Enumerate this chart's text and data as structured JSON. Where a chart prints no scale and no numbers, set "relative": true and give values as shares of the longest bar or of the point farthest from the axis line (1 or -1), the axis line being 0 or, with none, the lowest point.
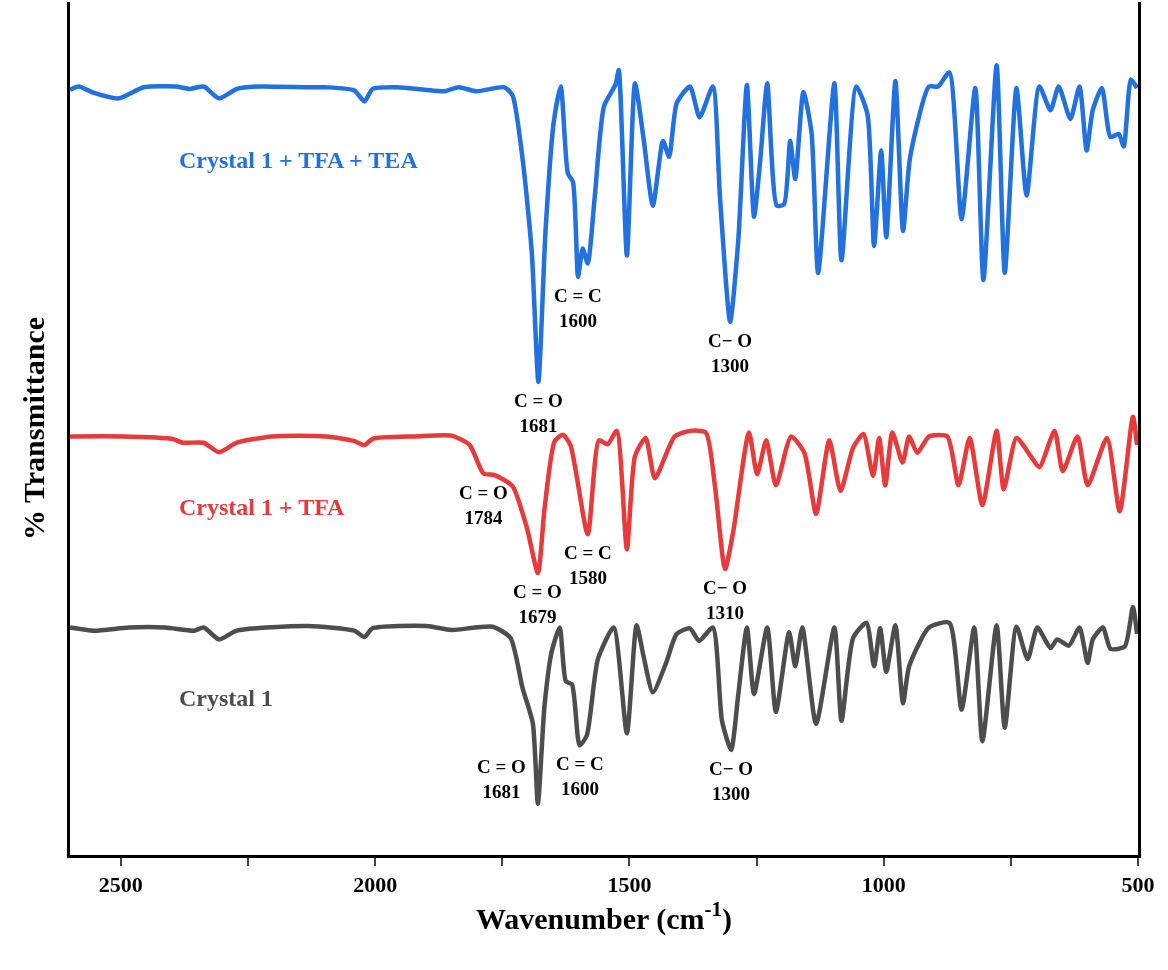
{
  "chart_data": {
    "type": "line",
    "relative": true,
    "xlabel": "Wavenumber (cm$^{-1}$)",
    "ylabel": "% Transmittance",
    "xlim": [
      2600,
      500
    ],
    "xticks": [
      2500,
      {
        "value": 2250,
        "label": null
      },
      2000,
      {
        "value": 1750,
        "label": null
      },
      1500,
      {
        "value": 1250,
        "label": null
      },
      1000,
      {
        "value": 750,
        "label": null
      },
      500
    ],
    "legend": false,
    "marker": "none",
    "line_style": "solid",
    "series": [
      {
        "name": "Crystal 1 + TFA + TEA",
        "color": "#2271e0",
        "x": [
          2600,
          2583,
          2553,
          2504,
          2455,
          2392,
          2364,
          2337,
          2307,
          2272,
          2230,
          2132,
          2096,
          2041,
          2021,
          2005,
          1956,
          1864,
          1836,
          1801,
          1746,
          1730,
          1710,
          1692,
          1679,
          1665,
          1649,
          1635,
          1621,
          1611,
          1601,
          1592,
          1582,
          1568,
          1550,
          1527,
          1521,
          1505,
          1489,
          1472,
          1454,
          1434,
          1422,
          1407,
          1381,
          1362,
          1336,
          1322,
          1302,
          1286,
          1269,
          1255,
          1243,
          1229,
          1210,
          1196,
          1184,
          1174,
          1158,
          1142,
          1129,
          1097,
          1083,
          1054,
          1032,
          1019,
          1005,
          995,
          977,
          962,
          948,
          911,
          893,
          871,
          847,
          820,
          804,
          778,
          762,
          739,
          719,
          694,
          672,
          656,
          633,
          615,
          601,
          589,
          571,
          554,
          538,
          528,
          514,
          502
        ],
        "values": [
          0.969,
          0.973,
          0.965,
          0.958,
          0.972,
          0.973,
          0.97,
          0.973,
          0.958,
          0.97,
          0.973,
          0.972,
          0.972,
          0.968,
          0.954,
          0.97,
          0.972,
          0.967,
          0.972,
          0.967,
          0.972,
          0.962,
          0.881,
          0.763,
          0.599,
          0.79,
          0.927,
          0.973,
          0.863,
          0.852,
          0.732,
          0.768,
          0.749,
          0.835,
          0.948,
          0.976,
          0.994,
          0.759,
          0.977,
          0.906,
          0.822,
          0.904,
          0.884,
          0.952,
          0.973,
          0.934,
          0.973,
          0.833,
          0.675,
          0.778,
          0.975,
          0.808,
          0.878,
          0.977,
          0.822,
          0.824,
          0.904,
          0.856,
          0.966,
          0.915,
          0.737,
          0.977,
          0.753,
          0.973,
          0.938,
          0.771,
          0.892,
          0.782,
          0.98,
          0.79,
          0.884,
          0.973,
          0.973,
          0.991,
          0.805,
          0.971,
          0.728,
          1.0,
          0.737,
          0.971,
          0.835,
          0.973,
          0.943,
          0.973,
          0.932,
          0.973,
          0.892,
          0.943,
          0.971,
          0.909,
          0.913,
          0.897,
          0.982,
          0.971
        ]
      },
      {
        "name": "Crystal 1 + TFA",
        "color": "#e8393b",
        "x": [
          2600,
          2498,
          2400,
          2378,
          2337,
          2307,
          2272,
          2203,
          2096,
          2041,
          2021,
          2005,
          1921,
          1850,
          1814,
          1787,
          1765,
          1730,
          1702,
          1680,
          1667,
          1647,
          1631,
          1616,
          1582,
          1560,
          1543,
          1525,
          1505,
          1489,
          1468,
          1450,
          1411,
          1381,
          1350,
          1332,
          1312,
          1296,
          1265,
          1249,
          1231,
          1212,
          1182,
          1156,
          1133,
          1107,
          1085,
          1060,
          1040,
          1021,
          1009,
          997,
          983,
          963,
          950,
          934,
          911,
          875,
          853,
          831,
          806,
          778,
          764,
          739,
          711,
          694,
          664,
          648,
          619,
          599,
          561,
          536,
          510,
          502
        ],
        "values": [
          0.53,
          0.53,
          0.527,
          0.522,
          0.522,
          0.51,
          0.522,
          0.53,
          0.53,
          0.524,
          0.519,
          0.527,
          0.53,
          0.531,
          0.519,
          0.483,
          0.481,
          0.467,
          0.415,
          0.357,
          0.438,
          0.524,
          0.532,
          0.519,
          0.406,
          0.525,
          0.52,
          0.537,
          0.387,
          0.505,
          0.528,
          0.477,
          0.53,
          0.537,
          0.535,
          0.468,
          0.362,
          0.409,
          0.535,
          0.482,
          0.525,
          0.468,
          0.53,
          0.509,
          0.432,
          0.525,
          0.461,
          0.516,
          0.533,
          0.48,
          0.528,
          0.468,
          0.535,
          0.497,
          0.53,
          0.509,
          0.53,
          0.53,
          0.468,
          0.528,
          0.443,
          0.537,
          0.463,
          0.528,
          0.505,
          0.491,
          0.537,
          0.486,
          0.53,
          0.468,
          0.528,
          0.435,
          0.555,
          0.519
        ]
      },
      {
        "name": "Crystal 1",
        "color": "#4d4d4d",
        "x": [
          2600,
          2553,
          2484,
          2413,
          2356,
          2337,
          2307,
          2272,
          2132,
          2041,
          2021,
          2005,
          1899,
          1850,
          1769,
          1734,
          1710,
          1690,
          1680,
          1667,
          1653,
          1637,
          1625,
          1613,
          1598,
          1584,
          1562,
          1531,
          1505,
          1486,
          1472,
          1454,
          1428,
          1407,
          1381,
          1363,
          1336,
          1318,
          1300,
          1286,
          1269,
          1255,
          1229,
          1212,
          1186,
          1174,
          1160,
          1133,
          1097,
          1083,
          1060,
          1034,
          1019,
          1007,
          995,
          977,
          962,
          950,
          911,
          871,
          847,
          822,
          806,
          778,
          762,
          739,
          717,
          698,
          672,
          659,
          636,
          615,
          599,
          589,
          569,
          554,
          526,
          510,
          502
        ],
        "values": [
          0.288,
          0.284,
          0.288,
          0.288,
          0.284,
          0.288,
          0.273,
          0.284,
          0.29,
          0.284,
          0.276,
          0.287,
          0.29,
          0.285,
          0.289,
          0.275,
          0.211,
          0.167,
          0.065,
          0.189,
          0.257,
          0.288,
          0.22,
          0.216,
          0.139,
          0.151,
          0.248,
          0.288,
          0.154,
          0.291,
          0.251,
          0.206,
          0.243,
          0.28,
          0.287,
          0.271,
          0.288,
          0.17,
          0.133,
          0.203,
          0.288,
          0.204,
          0.288,
          0.181,
          0.282,
          0.239,
          0.288,
          0.166,
          0.288,
          0.17,
          0.275,
          0.294,
          0.239,
          0.287,
          0.232,
          0.291,
          0.192,
          0.239,
          0.288,
          0.294,
          0.184,
          0.288,
          0.144,
          0.291,
          0.161,
          0.289,
          0.248,
          0.288,
          0.262,
          0.273,
          0.265,
          0.288,
          0.243,
          0.273,
          0.288,
          0.261,
          0.264,
          0.314,
          0.28
        ]
      }
    ],
    "annotations": [
      {
        "text": "C = O\n1681",
        "x": 1679,
        "y": 0.599
      },
      {
        "text": "C = C\n1600",
        "x": 1601,
        "y": 0.732
      },
      {
        "text": "C− O\n1300",
        "x": 1302,
        "y": 0.675
      },
      {
        "text": "C = O\n1784",
        "x": 1787,
        "y": 0.483
      },
      {
        "text": "C = O\n1679",
        "x": 1680,
        "y": 0.357
      },
      {
        "text": "C = C\n1580",
        "x": 1582,
        "y": 0.406
      },
      {
        "text": "C− O\n1310",
        "x": 1312,
        "y": 0.362
      },
      {
        "text": "C = O\n1681",
        "x": 1680,
        "y": 0.065
      },
      {
        "text": "C = C\n1600",
        "x": 1598,
        "y": 0.139
      },
      {
        "text": "C− O\n1300",
        "x": 1300,
        "y": 0.133
      }
    ]
  }
}
